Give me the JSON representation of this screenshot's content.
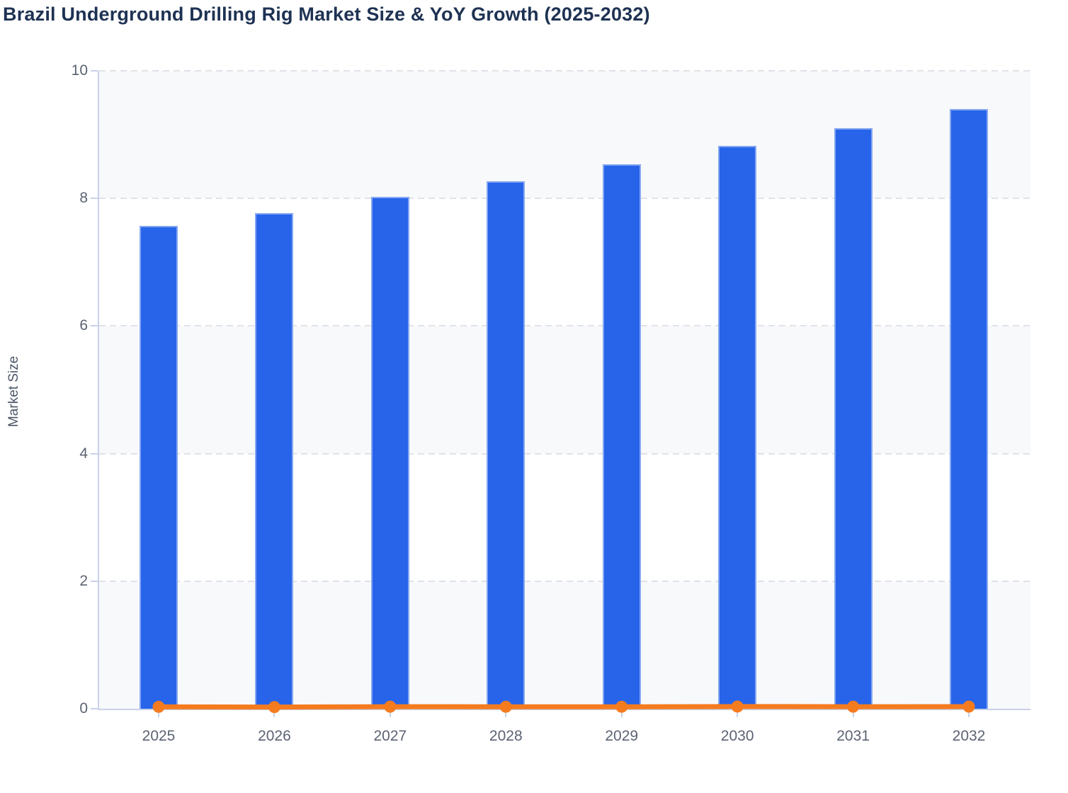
{
  "chart_data": {
    "type": "bar",
    "title": "Brazil Underground Drilling Rig Market Size & YoY Growth (2025-2032)",
    "categories": [
      "2025",
      "2026",
      "2027",
      "2028",
      "2029",
      "2030",
      "2031",
      "2032"
    ],
    "series": [
      {
        "name": "Market Size",
        "type": "bar",
        "values": [
          7.57,
          7.77,
          8.02,
          8.27,
          8.53,
          8.82,
          9.1,
          9.4
        ]
      },
      {
        "name": "YoY Growth",
        "type": "line",
        "values": [
          0.03,
          0.026,
          0.032,
          0.031,
          0.031,
          0.034,
          0.032,
          0.033
        ]
      }
    ],
    "xlabel": "",
    "ylabel": "Market Size",
    "ylim": [
      0,
      10
    ],
    "yticks": [
      0,
      2,
      4,
      6,
      8,
      10
    ],
    "grid": "dashed-horizontal",
    "plot_bands": "alternating-gray-between-gridlines",
    "legend": "none"
  },
  "colors": {
    "bar_fill": "#2764ea",
    "bar_border": "#85a8f1",
    "line": "#f57b1f",
    "band": "#f8f9fb",
    "grid": "#dfe2e7",
    "axis": "#c9d2e8",
    "tick_label": "#5b6372",
    "title": "#1e3253",
    "axis_title": "#4c5666"
  }
}
